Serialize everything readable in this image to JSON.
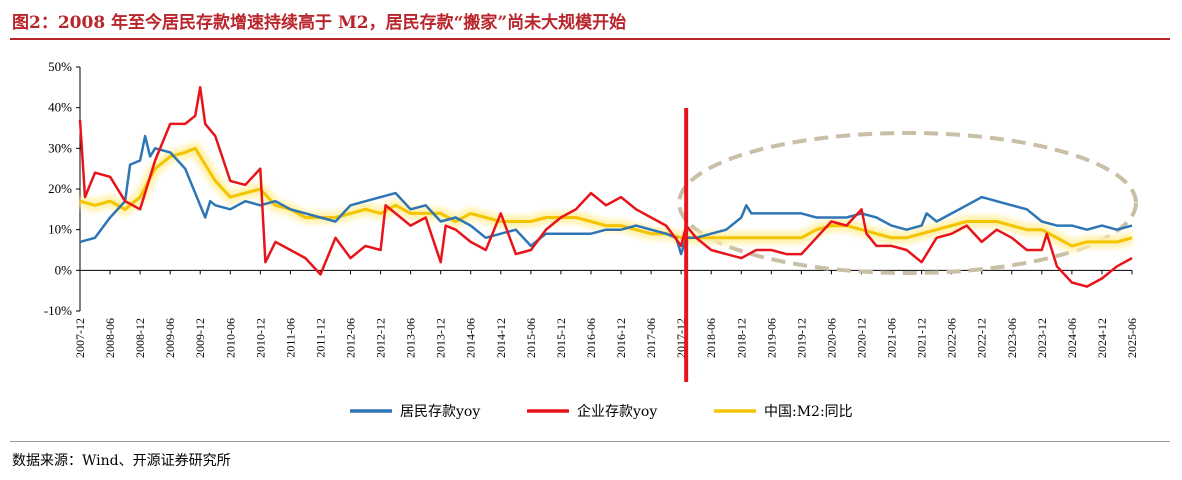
{
  "title": "图2：2008 年至今居民存款增速持续高于 M2，居民存款“搬家”尚未大规模开始",
  "source": "数据来源：Wind、开源证券研究所",
  "colors": {
    "household": "#2e75b6",
    "corporate": "#e8141b",
    "m2": "#f5c400",
    "m2_glow": "#fff1a8",
    "marker": "#e8141b",
    "ellipse": "#c8bfa6"
  },
  "chart_data": {
    "type": "line",
    "ylim": [
      -10,
      50
    ],
    "yticks": [
      -10,
      0,
      10,
      20,
      30,
      40,
      50
    ],
    "ytick_labels": [
      "-10%",
      "0%",
      "10%",
      "20%",
      "30%",
      "40%",
      "50%"
    ],
    "xticks": [
      "2007-12",
      "2008-06",
      "2008-12",
      "2009-06",
      "2009-12",
      "2010-06",
      "2010-12",
      "2011-06",
      "2011-12",
      "2012-06",
      "2012-12",
      "2013-06",
      "2013-12",
      "2014-06",
      "2014-12",
      "2015-06",
      "2015-12",
      "2016-06",
      "2016-12",
      "2017-06",
      "2017-12",
      "2018-06",
      "2018-12",
      "2019-06",
      "2019-12",
      "2020-06",
      "2020-12",
      "2021-06",
      "2021-12",
      "2022-06",
      "2022-12",
      "2023-06",
      "2023-12",
      "2024-06",
      "2024-12",
      "2025-06"
    ],
    "x_range": [
      "2007-12",
      "2025-06"
    ],
    "series": [
      {
        "name": "居民存款yoy",
        "key": "household",
        "points": [
          [
            "2007-12",
            7
          ],
          [
            "2008-03",
            8
          ],
          [
            "2008-06",
            13
          ],
          [
            "2008-09",
            17
          ],
          [
            "2008-10",
            26
          ],
          [
            "2008-12",
            27
          ],
          [
            "2009-01",
            33
          ],
          [
            "2009-02",
            28
          ],
          [
            "2009-03",
            30
          ],
          [
            "2009-06",
            29
          ],
          [
            "2009-09",
            25
          ],
          [
            "2009-12",
            16
          ],
          [
            "2010-01",
            13
          ],
          [
            "2010-02",
            17
          ],
          [
            "2010-03",
            16
          ],
          [
            "2010-06",
            15
          ],
          [
            "2010-09",
            17
          ],
          [
            "2010-12",
            16
          ],
          [
            "2011-03",
            17
          ],
          [
            "2011-06",
            15
          ],
          [
            "2011-12",
            13
          ],
          [
            "2012-03",
            12
          ],
          [
            "2012-06",
            16
          ],
          [
            "2012-09",
            17
          ],
          [
            "2012-12",
            18
          ],
          [
            "2013-03",
            19
          ],
          [
            "2013-06",
            15
          ],
          [
            "2013-09",
            16
          ],
          [
            "2013-12",
            12
          ],
          [
            "2014-03",
            13
          ],
          [
            "2014-06",
            11
          ],
          [
            "2014-09",
            8
          ],
          [
            "2014-12",
            9
          ],
          [
            "2015-03",
            10
          ],
          [
            "2015-06",
            6
          ],
          [
            "2015-09",
            9
          ],
          [
            "2015-12",
            9
          ],
          [
            "2016-03",
            9
          ],
          [
            "2016-06",
            9
          ],
          [
            "2016-09",
            10
          ],
          [
            "2016-12",
            10
          ],
          [
            "2017-03",
            11
          ],
          [
            "2017-06",
            10
          ],
          [
            "2017-09",
            9
          ],
          [
            "2017-11",
            8
          ],
          [
            "2017-12",
            4
          ],
          [
            "2018-01",
            8
          ],
          [
            "2018-03",
            8
          ],
          [
            "2018-06",
            9
          ],
          [
            "2018-09",
            10
          ],
          [
            "2018-12",
            13
          ],
          [
            "2019-01",
            16
          ],
          [
            "2019-02",
            14
          ],
          [
            "2019-06",
            14
          ],
          [
            "2019-09",
            14
          ],
          [
            "2019-12",
            14
          ],
          [
            "2020-03",
            13
          ],
          [
            "2020-06",
            13
          ],
          [
            "2020-09",
            13
          ],
          [
            "2020-12",
            14
          ],
          [
            "2021-03",
            13
          ],
          [
            "2021-06",
            11
          ],
          [
            "2021-09",
            10
          ],
          [
            "2021-12",
            11
          ],
          [
            "2022-01",
            14
          ],
          [
            "2022-03",
            12
          ],
          [
            "2022-06",
            14
          ],
          [
            "2022-09",
            16
          ],
          [
            "2022-12",
            18
          ],
          [
            "2023-03",
            17
          ],
          [
            "2023-06",
            16
          ],
          [
            "2023-09",
            15
          ],
          [
            "2023-12",
            12
          ],
          [
            "2024-03",
            11
          ],
          [
            "2024-06",
            11
          ],
          [
            "2024-09",
            10
          ],
          [
            "2024-12",
            11
          ],
          [
            "2025-03",
            10
          ],
          [
            "2025-06",
            11
          ]
        ]
      },
      {
        "name": "企业存款yoy",
        "key": "corporate",
        "points": [
          [
            "2007-12",
            37
          ],
          [
            "2008-01",
            18
          ],
          [
            "2008-03",
            24
          ],
          [
            "2008-06",
            23
          ],
          [
            "2008-09",
            17
          ],
          [
            "2008-12",
            15
          ],
          [
            "2009-03",
            27
          ],
          [
            "2009-06",
            36
          ],
          [
            "2009-09",
            36
          ],
          [
            "2009-11",
            38
          ],
          [
            "2009-12",
            45
          ],
          [
            "2010-01",
            36
          ],
          [
            "2010-03",
            33
          ],
          [
            "2010-06",
            22
          ],
          [
            "2010-09",
            21
          ],
          [
            "2010-12",
            25
          ],
          [
            "2011-01",
            2
          ],
          [
            "2011-03",
            7
          ],
          [
            "2011-06",
            5
          ],
          [
            "2011-09",
            3
          ],
          [
            "2011-12",
            -1
          ],
          [
            "2012-03",
            8
          ],
          [
            "2012-06",
            3
          ],
          [
            "2012-09",
            6
          ],
          [
            "2012-12",
            5
          ],
          [
            "2013-01",
            16
          ],
          [
            "2013-03",
            14
          ],
          [
            "2013-06",
            11
          ],
          [
            "2013-09",
            13
          ],
          [
            "2013-12",
            2
          ],
          [
            "2014-01",
            11
          ],
          [
            "2014-03",
            10
          ],
          [
            "2014-06",
            7
          ],
          [
            "2014-09",
            5
          ],
          [
            "2014-12",
            14
          ],
          [
            "2015-03",
            4
          ],
          [
            "2015-06",
            5
          ],
          [
            "2015-09",
            10
          ],
          [
            "2015-12",
            13
          ],
          [
            "2016-03",
            15
          ],
          [
            "2016-06",
            19
          ],
          [
            "2016-09",
            16
          ],
          [
            "2016-12",
            18
          ],
          [
            "2017-03",
            15
          ],
          [
            "2017-06",
            13
          ],
          [
            "2017-09",
            11
          ],
          [
            "2017-12",
            6
          ],
          [
            "2018-01",
            11
          ],
          [
            "2018-03",
            8
          ],
          [
            "2018-06",
            5
          ],
          [
            "2018-09",
            4
          ],
          [
            "2018-12",
            3
          ],
          [
            "2019-03",
            5
          ],
          [
            "2019-06",
            5
          ],
          [
            "2019-09",
            4
          ],
          [
            "2019-12",
            4
          ],
          [
            "2020-03",
            8
          ],
          [
            "2020-06",
            12
          ],
          [
            "2020-09",
            11
          ],
          [
            "2020-12",
            15
          ],
          [
            "2021-01",
            9
          ],
          [
            "2021-03",
            6
          ],
          [
            "2021-06",
            6
          ],
          [
            "2021-09",
            5
          ],
          [
            "2021-12",
            2
          ],
          [
            "2022-03",
            8
          ],
          [
            "2022-06",
            9
          ],
          [
            "2022-09",
            11
          ],
          [
            "2022-12",
            7
          ],
          [
            "2023-03",
            10
          ],
          [
            "2023-06",
            8
          ],
          [
            "2023-09",
            5
          ],
          [
            "2023-12",
            5
          ],
          [
            "2024-01",
            9
          ],
          [
            "2024-03",
            1
          ],
          [
            "2024-06",
            -3
          ],
          [
            "2024-09",
            -4
          ],
          [
            "2024-12",
            -2
          ],
          [
            "2025-03",
            1
          ],
          [
            "2025-06",
            3
          ]
        ]
      },
      {
        "name": "中国:M2:同比",
        "key": "m2",
        "points": [
          [
            "2007-12",
            17
          ],
          [
            "2008-03",
            16
          ],
          [
            "2008-06",
            17
          ],
          [
            "2008-09",
            15
          ],
          [
            "2008-12",
            18
          ],
          [
            "2009-03",
            25
          ],
          [
            "2009-06",
            28
          ],
          [
            "2009-09",
            29
          ],
          [
            "2009-11",
            30
          ],
          [
            "2009-12",
            28
          ],
          [
            "2010-03",
            22
          ],
          [
            "2010-06",
            18
          ],
          [
            "2010-09",
            19
          ],
          [
            "2010-12",
            20
          ],
          [
            "2011-03",
            16
          ],
          [
            "2011-06",
            15
          ],
          [
            "2011-09",
            13
          ],
          [
            "2011-12",
            13
          ],
          [
            "2012-03",
            13
          ],
          [
            "2012-06",
            14
          ],
          [
            "2012-09",
            15
          ],
          [
            "2012-12",
            14
          ],
          [
            "2013-03",
            16
          ],
          [
            "2013-06",
            14
          ],
          [
            "2013-09",
            14
          ],
          [
            "2013-12",
            14
          ],
          [
            "2014-03",
            12
          ],
          [
            "2014-06",
            14
          ],
          [
            "2014-09",
            13
          ],
          [
            "2014-12",
            12
          ],
          [
            "2015-03",
            12
          ],
          [
            "2015-06",
            12
          ],
          [
            "2015-09",
            13
          ],
          [
            "2015-12",
            13
          ],
          [
            "2016-03",
            13
          ],
          [
            "2016-06",
            12
          ],
          [
            "2016-09",
            11
          ],
          [
            "2016-12",
            11
          ],
          [
            "2017-03",
            10
          ],
          [
            "2017-06",
            9
          ],
          [
            "2017-09",
            9
          ],
          [
            "2017-12",
            8
          ],
          [
            "2018-03",
            8
          ],
          [
            "2018-06",
            8
          ],
          [
            "2018-09",
            8
          ],
          [
            "2018-12",
            8
          ],
          [
            "2019-03",
            8
          ],
          [
            "2019-06",
            8
          ],
          [
            "2019-09",
            8
          ],
          [
            "2019-12",
            8
          ],
          [
            "2020-03",
            10
          ],
          [
            "2020-06",
            11
          ],
          [
            "2020-09",
            11
          ],
          [
            "2020-12",
            10
          ],
          [
            "2021-03",
            9
          ],
          [
            "2021-06",
            8
          ],
          [
            "2021-09",
            8
          ],
          [
            "2021-12",
            9
          ],
          [
            "2022-03",
            10
          ],
          [
            "2022-06",
            11
          ],
          [
            "2022-09",
            12
          ],
          [
            "2022-12",
            12
          ],
          [
            "2023-03",
            12
          ],
          [
            "2023-06",
            11
          ],
          [
            "2023-09",
            10
          ],
          [
            "2023-12",
            10
          ],
          [
            "2024-03",
            8
          ],
          [
            "2024-06",
            6
          ],
          [
            "2024-09",
            7
          ],
          [
            "2024-12",
            7
          ],
          [
            "2025-03",
            7
          ],
          [
            "2025-06",
            8
          ]
        ]
      }
    ],
    "legend_position": "bottom",
    "annotations": {
      "vertical_marker_date": "2018-01",
      "ellipse_range": [
        "2018-02",
        "2025-06"
      ]
    }
  }
}
